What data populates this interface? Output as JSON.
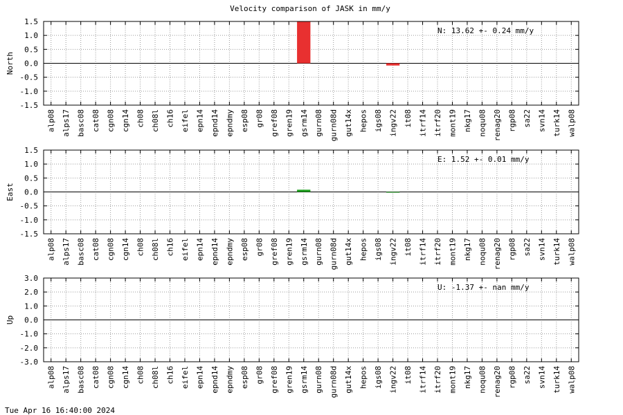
{
  "title": "Velocity comparison of JASK in mm/y",
  "footer": "Tue Apr 16 16:40:00 2024",
  "chart_data": [
    {
      "type": "bar",
      "ylabel": "North",
      "annotation": "N:  13.62 +-  0.24 mm/y",
      "color": "#e83030",
      "grid": true,
      "categories": [
        "alp08",
        "alps17",
        "basc08",
        "cat08",
        "cgn08",
        "cgn14",
        "ch08",
        "ch08l",
        "ch16",
        "eifel",
        "epn14",
        "epnd14",
        "epndmy",
        "esp08",
        "gr08",
        "gref08",
        "gren19",
        "gsrm14",
        "gurn08",
        "gurn08d",
        "gut14x",
        "hepos",
        "igs08",
        "ingv22",
        "it08",
        "itrf14",
        "itrf20",
        "mont19",
        "nkg17",
        "noqu08",
        "renag20",
        "rgp08",
        "sa22",
        "svn14",
        "turk14",
        "walp08"
      ],
      "values": [
        null,
        null,
        null,
        null,
        null,
        null,
        null,
        null,
        null,
        null,
        null,
        null,
        null,
        null,
        null,
        null,
        null,
        1.5,
        null,
        null,
        null,
        null,
        null,
        -0.08,
        null,
        null,
        null,
        null,
        null,
        null,
        null,
        null,
        null,
        null,
        null,
        null
      ],
      "ylim": [
        -1.5,
        1.5
      ],
      "yticks": [
        1.5,
        {
          "value": 1.0,
          "label": "1.0"
        },
        0.5,
        {
          "value": 0.0,
          "label": "0.0"
        },
        -0.5,
        {
          "value": -1.0,
          "label": "-1.0"
        },
        -1.5
      ]
    },
    {
      "type": "bar",
      "ylabel": "East",
      "annotation": "E:   1.52 +-  0.01 mm/y",
      "color": "#20a020",
      "grid": true,
      "categories": [
        "alp08",
        "alps17",
        "basc08",
        "cat08",
        "cgn08",
        "cgn14",
        "ch08",
        "ch08l",
        "ch16",
        "eifel",
        "epn14",
        "epnd14",
        "epndmy",
        "esp08",
        "gr08",
        "gref08",
        "gren19",
        "gsrm14",
        "gurn08",
        "gurn08d",
        "gut14x",
        "hepos",
        "igs08",
        "ingv22",
        "it08",
        "itrf14",
        "itrf20",
        "mont19",
        "nkg17",
        "noqu08",
        "renag20",
        "rgp08",
        "sa22",
        "svn14",
        "turk14",
        "walp08"
      ],
      "values": [
        null,
        null,
        null,
        null,
        null,
        null,
        null,
        null,
        null,
        null,
        null,
        null,
        null,
        null,
        null,
        null,
        null,
        0.08,
        null,
        null,
        null,
        null,
        null,
        -0.02,
        null,
        null,
        null,
        null,
        null,
        null,
        null,
        null,
        null,
        null,
        null,
        null
      ],
      "ylim": [
        -1.5,
        1.5
      ],
      "yticks": [
        1.5,
        {
          "value": 1.0,
          "label": "1.0"
        },
        0.5,
        {
          "value": 0.0,
          "label": "0.0"
        },
        -0.5,
        {
          "value": -1.0,
          "label": "-1.0"
        },
        -1.5
      ]
    },
    {
      "type": "bar",
      "ylabel": "Up",
      "annotation": "U:  -1.37 +-   nan mm/y",
      "color": "#3050e0",
      "grid": true,
      "categories": [
        "alp08",
        "alps17",
        "basc08",
        "cat08",
        "cgn08",
        "cgn14",
        "ch08",
        "ch08l",
        "ch16",
        "eifel",
        "epn14",
        "epnd14",
        "epndmy",
        "esp08",
        "gr08",
        "gref08",
        "gren19",
        "gsrm14",
        "gurn08",
        "gurn08d",
        "gut14x",
        "hepos",
        "igs08",
        "ingv22",
        "it08",
        "itrf14",
        "itrf20",
        "mont19",
        "nkg17",
        "noqu08",
        "renag20",
        "rgp08",
        "sa22",
        "svn14",
        "turk14",
        "walp08"
      ],
      "values": [
        null,
        null,
        null,
        null,
        null,
        null,
        null,
        null,
        null,
        null,
        null,
        null,
        null,
        null,
        null,
        null,
        null,
        null,
        null,
        null,
        null,
        null,
        null,
        null,
        null,
        null,
        null,
        null,
        null,
        null,
        null,
        null,
        null,
        null,
        null,
        null
      ],
      "ylim": [
        -3.0,
        3.0
      ],
      "yticks": [
        {
          "value": 3.0,
          "label": "3.0"
        },
        {
          "value": 2.0,
          "label": "2.0"
        },
        {
          "value": 1.0,
          "label": "1.0"
        },
        {
          "value": 0.0,
          "label": "0.0"
        },
        {
          "value": -1.0,
          "label": "-1.0"
        },
        {
          "value": -2.0,
          "label": "-2.0"
        },
        {
          "value": -3.0,
          "label": "-3.0"
        }
      ]
    }
  ]
}
